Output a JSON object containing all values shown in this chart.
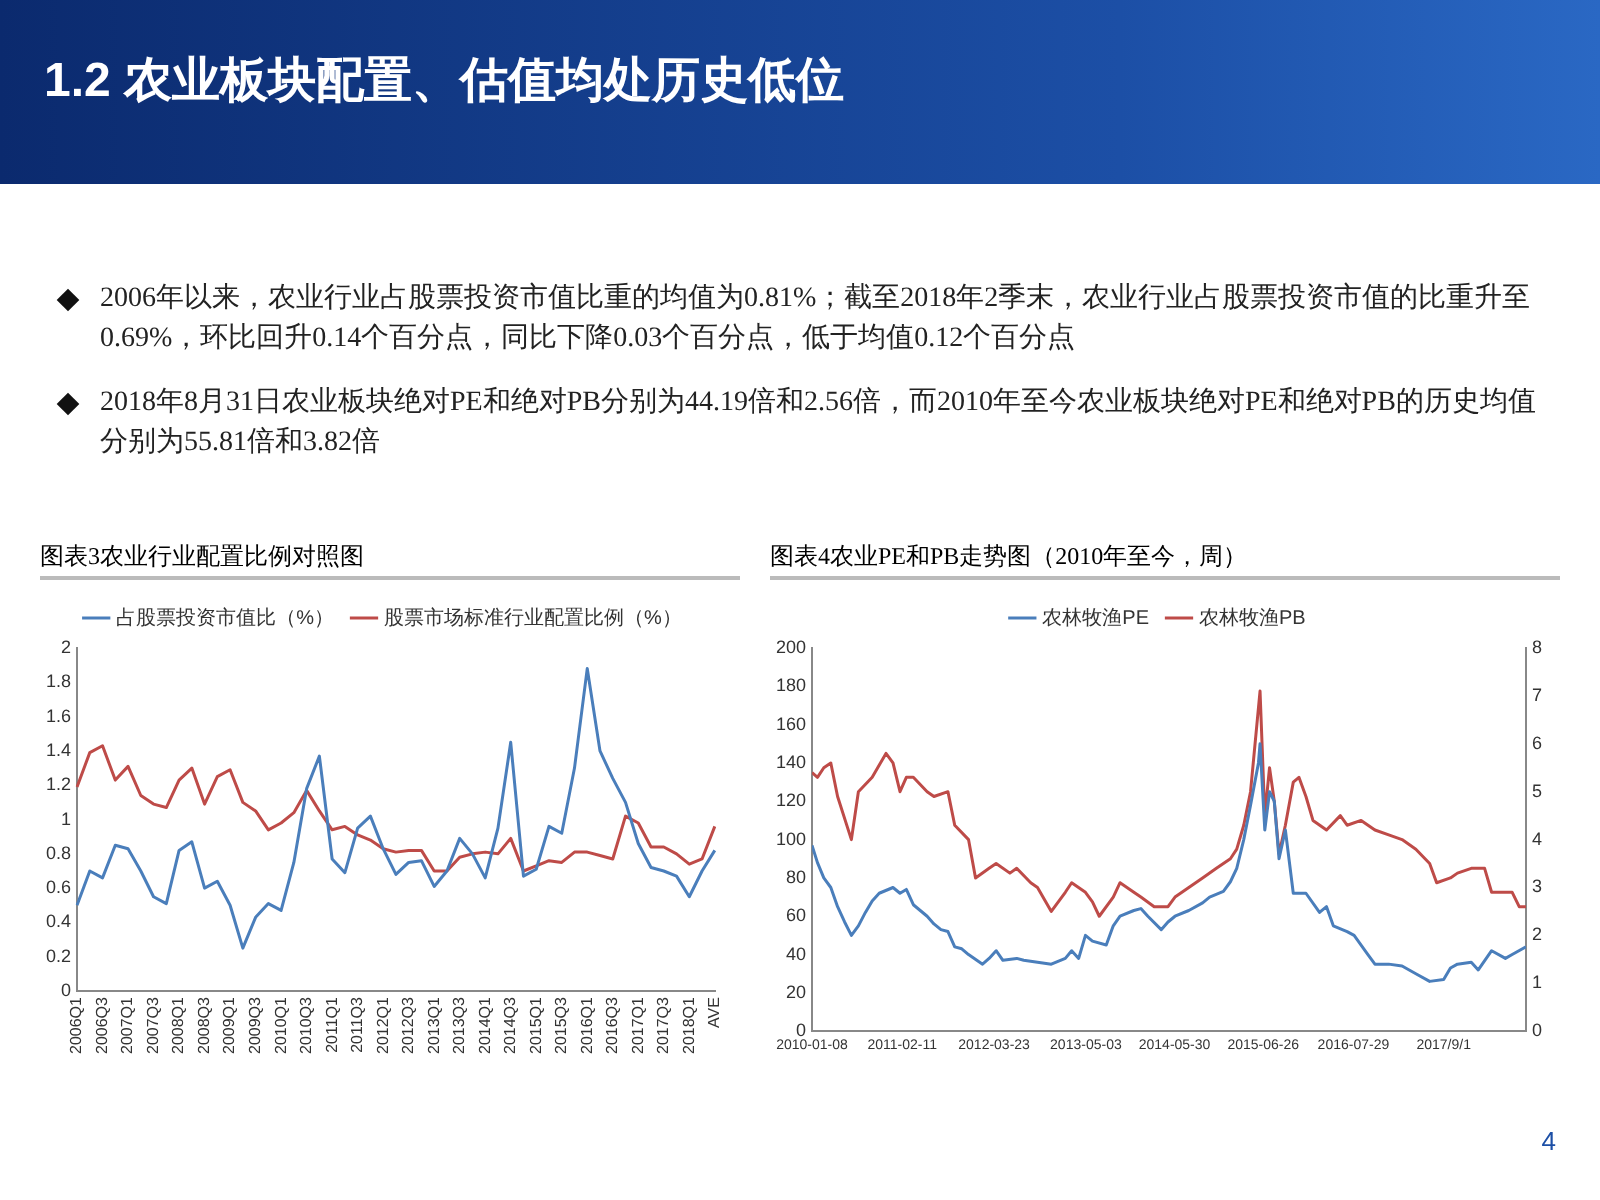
{
  "chart_data": [
    {
      "type": "other",
      "title": "1.2 农业板块配置、估值均处历史低位",
      "annotations": [
        "2006年以来，农业行业占股票投资市值比重的均值为0.81%；截至2018年2季末，农业行业占股票投资市值的比重升至0.69%，环比回升0.14个百分点，同比下降0.03个百分点，低于均值0.12个百分点",
        "2018年8月31日农业板块绝对PE和绝对PB分别为44.19倍和2.56倍，而2010年至今农业板块绝对PE和绝对PB的历史均值分别为55.81倍和3.82倍",
        "4"
      ]
    },
    {
      "type": "line",
      "title": "图表3农业行业配置比例对照图",
      "categories": [
        "2006Q1",
        null,
        "2006Q3",
        null,
        "2007Q1",
        null,
        "2007Q3",
        null,
        "2008Q1",
        null,
        "2008Q3",
        null,
        "2009Q1",
        null,
        "2009Q3",
        null,
        "2010Q1",
        null,
        "2010Q3",
        null,
        "2011Q1",
        null,
        "2011Q3",
        null,
        "2012Q1",
        null,
        "2012Q3",
        null,
        "2013Q1",
        null,
        "2013Q3",
        null,
        "2014Q1",
        null,
        "2014Q3",
        null,
        "2015Q1",
        null,
        "2015Q3",
        null,
        "2016Q1",
        null,
        "2016Q3",
        null,
        "2017Q1",
        null,
        "2017Q3",
        null,
        "2018Q1",
        null,
        "AVE"
      ],
      "series": [
        {
          "name": "占股票投资市值比（%）",
          "color": "#4a7ebb",
          "values": [
            0.5,
            0.7,
            0.66,
            0.85,
            0.83,
            0.7,
            0.55,
            0.51,
            0.82,
            0.87,
            0.6,
            0.64,
            0.5,
            0.25,
            0.43,
            0.51,
            0.47,
            0.75,
            1.18,
            1.37,
            0.77,
            0.69,
            0.95,
            1.02,
            0.83,
            0.68,
            0.75,
            0.76,
            0.61,
            0.7,
            0.89,
            0.8,
            0.66,
            0.95,
            1.45,
            0.67,
            0.71,
            0.96,
            0.92,
            1.3,
            1.88,
            1.4,
            1.24,
            1.1,
            0.86,
            0.72,
            0.7,
            0.67,
            0.55,
            0.7,
            0.82
          ]
        },
        {
          "name": "股票市场标准行业配置比例（%）",
          "color": "#be4b48",
          "values": [
            1.19,
            1.39,
            1.43,
            1.23,
            1.31,
            1.14,
            1.09,
            1.07,
            1.23,
            1.3,
            1.09,
            1.25,
            1.29,
            1.1,
            1.05,
            0.94,
            0.98,
            1.04,
            1.17,
            1.05,
            0.94,
            0.96,
            0.91,
            0.88,
            0.83,
            0.81,
            0.82,
            0.82,
            0.7,
            0.7,
            0.78,
            0.8,
            0.81,
            0.8,
            0.89,
            0.7,
            0.73,
            0.76,
            0.75,
            0.81,
            0.81,
            0.79,
            0.77,
            1.02,
            0.98,
            0.84,
            0.84,
            0.8,
            0.74,
            0.77,
            0.96
          ]
        }
      ],
      "ylim": [
        0,
        2
      ],
      "yticks": [
        0,
        0.2,
        0.4,
        0.6,
        0.8,
        1,
        1.2,
        1.4,
        1.6,
        1.8,
        2
      ],
      "grid": false,
      "legend": "top",
      "marker": "none"
    },
    {
      "type": "line",
      "title": "图表4农业PE和PB走势图（2010年至今，周）",
      "series": [
        {
          "name": "农林牧渔PE",
          "color": "#4a7ebb",
          "x": [
            "2010-01-08",
            "2010-02",
            "2010-03",
            "2010-04",
            "2010-05",
            "2010-06",
            "2010-07",
            "2010-08",
            "2010-09",
            "2010-10",
            "2010-11",
            "2011-01",
            "2011-02",
            "2011-03",
            "2011-04",
            "2011-06",
            "2011-07",
            "2011-08",
            "2011-09",
            "2011-10",
            "2011-11",
            "2011-12",
            "2012-02",
            "2012-03",
            "2012-04",
            "2012-05",
            "2012-07",
            "2012-08",
            "2012-10",
            "2012-12",
            "2013-02",
            "2013-03",
            "2013-04",
            "2013-05",
            "2013-06",
            "2013-08",
            "2013-09",
            "2013-10",
            "2013-12",
            "2014-01",
            "2014-02",
            "2014-04",
            "2014-05",
            "2014-06",
            "2014-08",
            "2014-10",
            "2014-11",
            "2015-01",
            "2015-02",
            "2015-03",
            "2015-04",
            "2015-05",
            "2015-06-05",
            "2015-06-12",
            "2015-07-03",
            "2015-07-24",
            "2015-08-14",
            "2015-09-04",
            "2015-10-02",
            "2015-11-06",
            "2016-01",
            "2016-03",
            "2016-04",
            "2016-05",
            "2016-07",
            "2016-08",
            "2016-10",
            "2016-11",
            "2017-01",
            "2017-03",
            "2017-05",
            "2017-07",
            "2017-09",
            "2017-10",
            "2017-11",
            "2018-01",
            "2018-02",
            "2018-04",
            "2018-06",
            "2018-07",
            "2018-08-31"
          ],
          "values": [
            97,
            88,
            80,
            75,
            65,
            57,
            50,
            55,
            62,
            68,
            72,
            75,
            72,
            74,
            66,
            60,
            56,
            53,
            52,
            44,
            43,
            40,
            35,
            38,
            42,
            37,
            38,
            37,
            36,
            35,
            38,
            42,
            38,
            50,
            47,
            45,
            55,
            60,
            63,
            64,
            60,
            53,
            57,
            60,
            63,
            67,
            70,
            73,
            78,
            85,
            100,
            118,
            140,
            150,
            105,
            125,
            120,
            90,
            105,
            72,
            72,
            62,
            65,
            55,
            52,
            50,
            40,
            35,
            35,
            34,
            30,
            26,
            27,
            33,
            35,
            36,
            32,
            42,
            38,
            40,
            44
          ]
        },
        {
          "name": "农林牧渔PB",
          "color": "#be4b48",
          "axis": "y2",
          "x": [
            "2010-01-08",
            "2010-02",
            "2010-03",
            "2010-04",
            "2010-05",
            "2010-07",
            "2010-08",
            "2010-10",
            "2010-12",
            "2011-01",
            "2011-02",
            "2011-03",
            "2011-04",
            "2011-06",
            "2011-07",
            "2011-09",
            "2011-10",
            "2011-12",
            "2012-01",
            "2012-03",
            "2012-04",
            "2012-06",
            "2012-07",
            "2012-09",
            "2012-10",
            "2012-12",
            "2013-02",
            "2013-03",
            "2013-05",
            "2013-06",
            "2013-07",
            "2013-09",
            "2013-10",
            "2013-12",
            "2014-01",
            "2014-03",
            "2014-05",
            "2014-06",
            "2014-08",
            "2014-10",
            "2014-12",
            "2015-02",
            "2015-03",
            "2015-04",
            "2015-05",
            "2015-06-12",
            "2015-07-03",
            "2015-07-24",
            "2015-08-14",
            "2015-09-04",
            "2015-10-02",
            "2015-11-06",
            "2015-12",
            "2016-01",
            "2016-02",
            "2016-04",
            "2016-06",
            "2016-07",
            "2016-09",
            "2016-11",
            "2017-01",
            "2017-03",
            "2017-05",
            "2017-07",
            "2017-08",
            "2017-10",
            "2017-11",
            "2018-01",
            "2018-03",
            "2018-04",
            "2018-05",
            "2018-07",
            "2018-08",
            "2018-08-31"
          ],
          "values": [
            5.4,
            5.3,
            5.5,
            5.6,
            4.9,
            4.0,
            5.0,
            5.3,
            5.8,
            5.6,
            5.0,
            5.3,
            5.3,
            5.0,
            4.9,
            5.0,
            4.3,
            4.0,
            3.2,
            3.4,
            3.5,
            3.3,
            3.4,
            3.1,
            3.0,
            2.5,
            2.9,
            3.1,
            2.9,
            2.7,
            2.4,
            2.8,
            3.1,
            2.9,
            2.8,
            2.6,
            2.6,
            2.8,
            3.0,
            3.2,
            3.4,
            3.6,
            3.8,
            4.3,
            5.0,
            7.1,
            4.5,
            5.5,
            4.8,
            3.7,
            4.3,
            5.2,
            5.3,
            4.9,
            4.4,
            4.2,
            4.5,
            4.3,
            4.4,
            4.2,
            4.1,
            4.0,
            3.8,
            3.5,
            3.1,
            3.2,
            3.3,
            3.4,
            3.4,
            2.9,
            2.9,
            2.9,
            2.6,
            2.6
          ]
        }
      ],
      "xlim": [
        "2010-01-08",
        "2018-08-31"
      ],
      "xticks": [
        "2010-01-08",
        "2011-02-11",
        "2012-03-23",
        "2013-05-03",
        "2014-05-30",
        "2015-06-26",
        "2016-07-29",
        {
          "value": "2017-09-01",
          "label": "2017/9/1"
        }
      ],
      "ylim": [
        0,
        200
      ],
      "yticks": [
        0,
        20,
        40,
        60,
        80,
        100,
        120,
        140,
        160,
        180,
        200
      ],
      "y2lim": [
        0,
        8
      ],
      "y2ticks": [
        0,
        1,
        2,
        3,
        4,
        5,
        6,
        7,
        8
      ],
      "grid": false,
      "legend": "top",
      "marker": "none"
    }
  ]
}
